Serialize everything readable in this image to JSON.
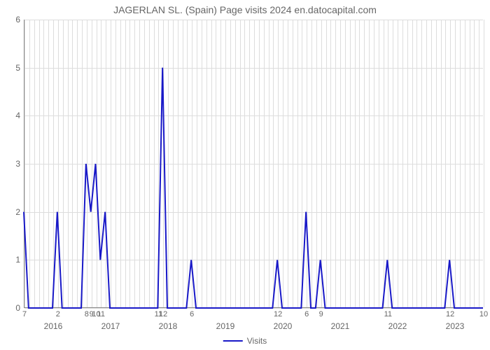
{
  "title": "JAGERLAN SL. (Spain) Page visits 2024 en.datocapital.com",
  "chart": {
    "type": "line",
    "background_color": "#ffffff",
    "grid_color": "#dddddd",
    "axis_color": "#888888",
    "text_color": "#666666",
    "title_fontsize": 14,
    "label_fontsize": 12,
    "tick_fontsize": 11,
    "line_width": 2,
    "series_color": "#1919c8",
    "ylim": [
      0,
      6
    ],
    "yticks": [
      0,
      1,
      2,
      3,
      4,
      5,
      6
    ],
    "x_count": 97,
    "major_years": [
      "2016",
      "2017",
      "2018",
      "2019",
      "2020",
      "2021",
      "2022",
      "2023"
    ],
    "major_year_positions": [
      6,
      18,
      30,
      42,
      54,
      66,
      78,
      90
    ],
    "xtick_labels": [
      {
        "pos": 0,
        "label": "7"
      },
      {
        "pos": 7,
        "label": "2"
      },
      {
        "pos": 13,
        "label": "8"
      },
      {
        "pos": 14,
        "label": "9"
      },
      {
        "pos": 15,
        "label": "10"
      },
      {
        "pos": 16,
        "label": "11"
      },
      {
        "pos": 28,
        "label": "11"
      },
      {
        "pos": 29,
        "label": "12"
      },
      {
        "pos": 35,
        "label": "6"
      },
      {
        "pos": 53,
        "label": "12"
      },
      {
        "pos": 59,
        "label": "6"
      },
      {
        "pos": 62,
        "label": "9"
      },
      {
        "pos": 76,
        "label": "11"
      },
      {
        "pos": 89,
        "label": "12"
      },
      {
        "pos": 96,
        "label": "10"
      }
    ],
    "values": [
      2,
      0,
      0,
      0,
      0,
      0,
      0,
      2,
      0,
      0,
      0,
      0,
      0,
      3,
      2,
      3,
      1,
      2,
      0,
      0,
      0,
      0,
      0,
      0,
      0,
      0,
      0,
      0,
      0,
      5,
      0,
      0,
      0,
      0,
      0,
      1,
      0,
      0,
      0,
      0,
      0,
      0,
      0,
      0,
      0,
      0,
      0,
      0,
      0,
      0,
      0,
      0,
      0,
      1,
      0,
      0,
      0,
      0,
      0,
      2,
      0,
      0,
      1,
      0,
      0,
      0,
      0,
      0,
      0,
      0,
      0,
      0,
      0,
      0,
      0,
      0,
      1,
      0,
      0,
      0,
      0,
      0,
      0,
      0,
      0,
      0,
      0,
      0,
      0,
      1,
      0,
      0,
      0,
      0,
      0,
      0,
      0
    ],
    "legend": "Visits"
  }
}
